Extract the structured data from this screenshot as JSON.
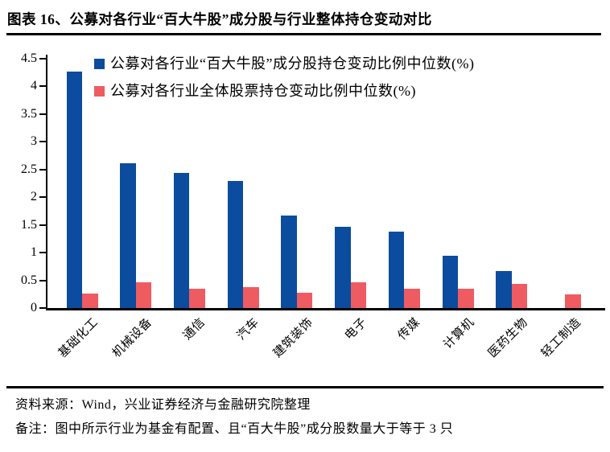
{
  "header": {
    "title": "图表 16、公募对各行业“百大牛股”成分股与行业整体持仓变动对比"
  },
  "chart_data": {
    "type": "bar",
    "title": "图表 16、公募对各行业“百大牛股”成分股与行业整体持仓变动对比",
    "categories": [
      "基础化工",
      "机械设备",
      "通信",
      "汽车",
      "建筑装饰",
      "电子",
      "传媒",
      "计算机",
      "医药生物",
      "轻工制造"
    ],
    "series": [
      {
        "name": "公募对各行业“百大牛股”成分股持仓变动比例中位数(%)",
        "color": "#0B4C9E",
        "values": [
          4.27,
          2.62,
          2.44,
          2.29,
          1.67,
          1.47,
          1.38,
          0.95,
          0.67,
          0
        ]
      },
      {
        "name": "公募对各行业全体股票持仓变动比例中位数(%)",
        "color": "#EE5C62",
        "values": [
          0.26,
          0.46,
          0.35,
          0.38,
          0.27,
          0.47,
          0.35,
          0.35,
          0.44,
          0.25
        ]
      }
    ],
    "xlabel": "",
    "ylabel": "",
    "ylim": [
      0,
      4.5
    ],
    "ytick_step": 0.5,
    "grid": false,
    "legend_position": "top-left-inside"
  },
  "footer": {
    "source": "资料来源：Wind，兴业证券经济与金融研究院整理",
    "note": "备注：图中所示行业为基金有配置、且“百大牛股”成分股数量大于等于 3 只"
  }
}
